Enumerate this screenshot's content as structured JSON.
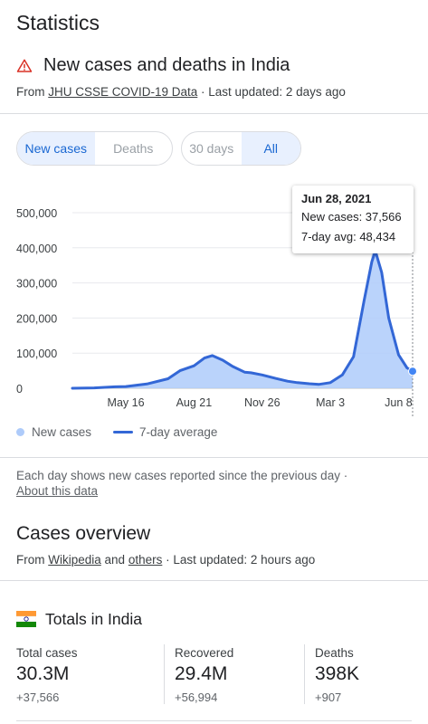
{
  "page": {
    "title": "Statistics"
  },
  "header": {
    "headline": "New cases and deaths in India",
    "source_prefix": "From ",
    "source_link": "JHU CSSE COVID-19 Data",
    "updated": " · Last updated: 2 days ago"
  },
  "metric_toggle": {
    "options": [
      "New cases",
      "Deaths"
    ],
    "selected": "New cases"
  },
  "range_toggle": {
    "options": [
      "30 days",
      "All"
    ],
    "selected": "All"
  },
  "tooltip": {
    "date": "Jun 28, 2021",
    "new_cases": "New cases: 37,566",
    "avg": "7-day avg: 48,434"
  },
  "legend": {
    "new_cases": "New cases",
    "avg": "7-day average"
  },
  "note": {
    "text": "Each day shows new cases reported since the previous day  ·",
    "link": "About this data"
  },
  "overview": {
    "title": "Cases overview",
    "source_prefix": "From ",
    "source_link1": "Wikipedia",
    "and": " and ",
    "source_link2": "others",
    "updated": " · Last updated: 2 hours ago"
  },
  "totals": {
    "title": "Totals in India",
    "stats": [
      {
        "label": "Total cases",
        "value": "30.3M",
        "delta": "+37,566"
      },
      {
        "label": "Recovered",
        "value": "29.4M",
        "delta": "+56,994"
      },
      {
        "label": "Deaths",
        "value": "398K",
        "delta": "+907"
      }
    ]
  },
  "colors": {
    "accent": "#1967d2",
    "line": "#3367d6",
    "area": "#aecbfa",
    "warning": "#d93025"
  },
  "chart_data": {
    "type": "area",
    "x_ticks": [
      "May 16",
      "Aug 21",
      "Nov 26",
      "Mar 3",
      "Jun 8"
    ],
    "y_ticks": [
      "0",
      "100,000",
      "200,000",
      "300,000",
      "400,000",
      "500,000"
    ],
    "ylim": [
      0,
      500000
    ],
    "grid": true,
    "legend_position": "bottom-left",
    "series": [
      {
        "name": "7-day average",
        "kind": "line",
        "x": [
          "2020-03-01",
          "2020-04-01",
          "2020-05-01",
          "2020-05-16",
          "2020-06-15",
          "2020-07-15",
          "2020-08-01",
          "2020-08-21",
          "2020-09-05",
          "2020-09-16",
          "2020-10-01",
          "2020-10-15",
          "2020-11-01",
          "2020-11-10",
          "2020-11-26",
          "2020-12-15",
          "2021-01-01",
          "2021-01-15",
          "2021-02-01",
          "2021-02-15",
          "2021-03-03",
          "2021-03-20",
          "2021-04-05",
          "2021-04-20",
          "2021-05-01",
          "2021-05-06",
          "2021-05-15",
          "2021-05-25",
          "2021-06-08",
          "2021-06-20",
          "2021-06-28"
        ],
        "values": [
          0,
          1000,
          4000,
          5000,
          12000,
          27000,
          50000,
          64000,
          86000,
          93000,
          80000,
          62000,
          46000,
          44000,
          38000,
          28000,
          20000,
          16000,
          13000,
          11000,
          16000,
          38000,
          90000,
          250000,
          360000,
          391000,
          330000,
          200000,
          95000,
          58000,
          48434
        ]
      },
      {
        "name": "New cases",
        "kind": "area",
        "x": [
          "2020-03-01",
          "2020-04-01",
          "2020-05-01",
          "2020-05-16",
          "2020-06-15",
          "2020-07-15",
          "2020-08-01",
          "2020-08-21",
          "2020-09-05",
          "2020-09-16",
          "2020-10-01",
          "2020-10-15",
          "2020-11-01",
          "2020-11-10",
          "2020-11-26",
          "2020-12-15",
          "2021-01-01",
          "2021-01-15",
          "2021-02-01",
          "2021-02-15",
          "2021-03-03",
          "2021-03-20",
          "2021-04-05",
          "2021-04-20",
          "2021-05-01",
          "2021-05-06",
          "2021-05-15",
          "2021-05-25",
          "2021-06-08",
          "2021-06-20",
          "2021-06-28"
        ],
        "values": [
          0,
          1000,
          4000,
          5000,
          13000,
          28000,
          52000,
          66000,
          90000,
          97000,
          78000,
          60000,
          45000,
          46000,
          40000,
          27000,
          19000,
          15000,
          12000,
          11000,
          17000,
          40000,
          96000,
          260000,
          380000,
          414000,
          326000,
          195000,
          92000,
          55000,
          37566
        ]
      }
    ]
  }
}
